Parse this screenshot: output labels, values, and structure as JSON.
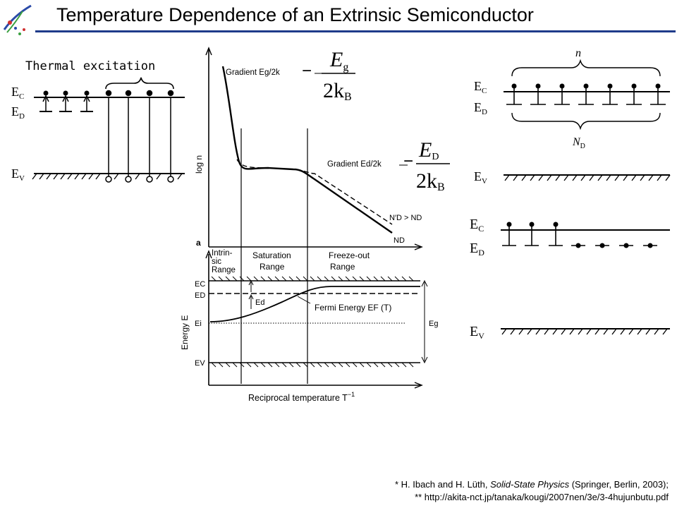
{
  "title": "Temperature Dependence of an Extrinsic Semiconductor",
  "left_panel": {
    "heading": "Thermal excitation",
    "level_ec": "E",
    "level_ec_sub": "C",
    "level_ed": "E",
    "level_ed_sub": "D",
    "level_ev": "E",
    "level_ev_sub": "V"
  },
  "top_graph": {
    "panel_letter": "a",
    "ylabel": "log n",
    "gradient_g": "Gradient Eₑ/2k",
    "gradient_g_plain": "Gradient Eg/2k",
    "gradient_d": "Gradient Ed/2k",
    "legend_ndprime": "N′D > ND",
    "legend_nd": "ND"
  },
  "formulas": {
    "eg_num": "E",
    "eg_sub": "g",
    "eg_den": "2k",
    "eg_den_sub": "B",
    "ed_num": "E",
    "ed_sub": "D",
    "ed_den": "2k",
    "ed_den_sub": "B",
    "minus": "−"
  },
  "ranges": {
    "intrinsic_l1": "Intrin-",
    "intrinsic_l2": "sic",
    "intrinsic_l3": "Range",
    "saturation_l1": "Saturation",
    "saturation_l2": "Range",
    "freezeout_l1": "Freeze-out",
    "freezeout_l2": "Range"
  },
  "bottom_graph": {
    "ylabel": "Energy E",
    "xlabel": "Reciprocal temperature T",
    "xlabel_sup": "−1",
    "ec": "EC",
    "ed": "ED",
    "ei": "Ei",
    "ev": "EV",
    "ed_arrow": "Ed",
    "fermi": "Fermi Energy EF (T)",
    "eg": "Eg"
  },
  "right_panel": {
    "n_label": "n",
    "nd_label": "N",
    "nd_sub": "D",
    "ec": "E",
    "ec_sub": "C",
    "ed": "E",
    "ed_sub": "D",
    "ev": "E",
    "ev_sub": "V"
  },
  "references": {
    "line1_a": "* H. Ibach and H. Lüth, ",
    "line1_b": "Solid-State Physics",
    "line1_c": " (Springer, Berlin, 2003);",
    "line2": "** http://akita-nct.jp/tanaka/kougi/2007nen/3e/3-4hujunbutu.pdf"
  },
  "colors": {
    "title_rule": "#1f3b8a",
    "logo_blue": "#2a4aa8",
    "logo_green": "#3aa040",
    "logo_red": "#d03030"
  }
}
